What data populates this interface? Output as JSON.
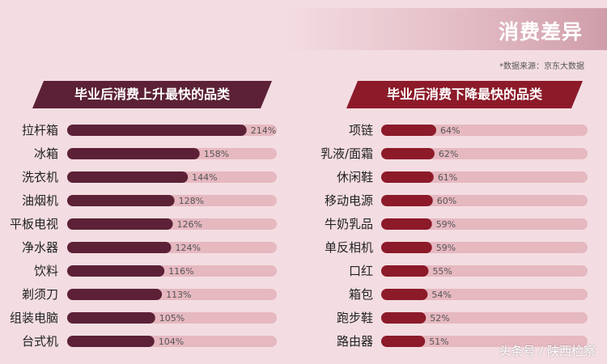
{
  "header": {
    "title": "消费差异",
    "source": "*数据来源：京东大数据",
    "watermark": "头条号 / 陕西检察"
  },
  "colors": {
    "left_bar": "#5c2136",
    "right_bar": "#8c1a29",
    "track": "#e6b8c0"
  },
  "chart_data": [
    {
      "type": "bar",
      "title": "毕业后消费上升最快的品类",
      "categories": [
        "拉杆箱",
        "冰箱",
        "洗衣机",
        "油烟机",
        "平板电视",
        "净水器",
        "饮料",
        "剃须刀",
        "组装电脑",
        "台式机"
      ],
      "values": [
        214,
        158,
        144,
        128,
        126,
        124,
        116,
        113,
        105,
        104
      ],
      "value_labels": [
        "214%",
        "158%",
        "144%",
        "128%",
        "126%",
        "124%",
        "116%",
        "113%",
        "105%",
        "104%"
      ],
      "unit": "%",
      "xlim": [
        0,
        250
      ]
    },
    {
      "type": "bar",
      "title": "毕业后消费下降最快的品类",
      "categories": [
        "项链",
        "乳液/面霜",
        "休闲鞋",
        "移动电源",
        "牛奶乳品",
        "单反相机",
        "口红",
        "箱包",
        "跑步鞋",
        "路由器"
      ],
      "values": [
        64,
        62,
        61,
        60,
        59,
        59,
        55,
        54,
        52,
        51
      ],
      "value_labels": [
        "64%",
        "62%",
        "61%",
        "60%",
        "59%",
        "59%",
        "55%",
        "54%",
        "52%",
        "51%"
      ],
      "unit": "%",
      "xlim": [
        0,
        240
      ]
    }
  ]
}
